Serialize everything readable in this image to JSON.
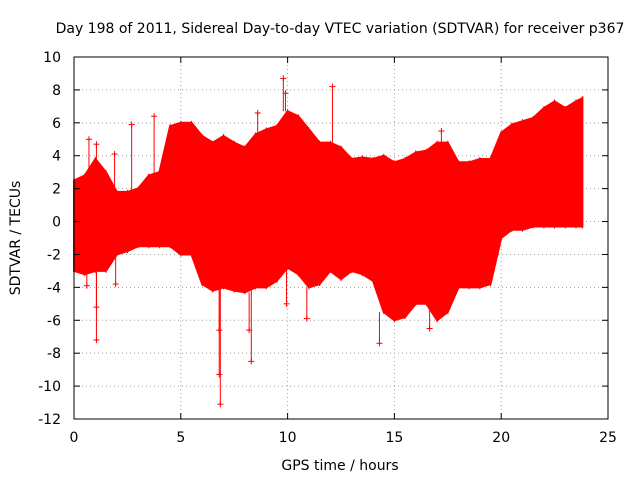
{
  "chart_data": {
    "type": "scatter",
    "title": "Day 198 of 2011, Sidereal Day-to-day VTEC variation (SDTVAR) for receiver p367",
    "xlabel": "GPS time / hours",
    "ylabel": "SDTVAR / TECUs",
    "xlim": [
      0,
      25
    ],
    "ylim": [
      -12,
      10
    ],
    "grid": true,
    "x_ticks": [
      0,
      5,
      10,
      15,
      20,
      25
    ],
    "y_ticks": [
      -12,
      -10,
      -8,
      -6,
      -4,
      -2,
      0,
      2,
      4,
      6,
      8,
      10
    ],
    "marker": "plus",
    "series": [
      {
        "name": "SDTVAR",
        "color": "#ff0000",
        "envelope": {
          "x": [
            0.0,
            0.5,
            1.0,
            1.5,
            2.0,
            2.5,
            3.0,
            3.5,
            4.0,
            4.5,
            5.0,
            5.5,
            6.0,
            6.5,
            7.0,
            7.5,
            8.0,
            8.5,
            9.0,
            9.5,
            10.0,
            10.5,
            11.0,
            11.5,
            12.0,
            12.5,
            13.0,
            13.5,
            14.0,
            14.5,
            15.0,
            15.5,
            16.0,
            16.5,
            17.0,
            17.5,
            18.0,
            18.5,
            19.0,
            19.5,
            20.0,
            20.5,
            21.0,
            21.5,
            22.0,
            22.5,
            23.0,
            23.5,
            23.8
          ],
          "upper": [
            2.5,
            2.8,
            3.8,
            3.0,
            1.8,
            1.8,
            2.0,
            2.8,
            3.0,
            5.8,
            6.0,
            6.0,
            5.2,
            4.8,
            5.2,
            4.8,
            4.5,
            5.3,
            5.6,
            5.8,
            6.7,
            6.4,
            5.6,
            4.8,
            4.8,
            4.5,
            3.8,
            3.9,
            3.8,
            4.0,
            3.6,
            3.8,
            4.2,
            4.3,
            4.8,
            4.8,
            3.6,
            3.6,
            3.8,
            3.8,
            5.4,
            5.9,
            6.1,
            6.3,
            6.9,
            7.3,
            6.9,
            7.3,
            7.5
          ],
          "lower": [
            -3.0,
            -3.2,
            -3.0,
            -3.0,
            -2.0,
            -1.8,
            -1.5,
            -1.5,
            -1.5,
            -1.5,
            -2.0,
            -2.0,
            -3.8,
            -4.2,
            -4.0,
            -4.2,
            -4.3,
            -4.0,
            -4.0,
            -3.6,
            -2.8,
            -3.2,
            -4.0,
            -3.8,
            -3.0,
            -3.5,
            -3.0,
            -3.2,
            -3.6,
            -5.5,
            -6.0,
            -5.8,
            -5.0,
            -5.0,
            -6.0,
            -5.5,
            -4.0,
            -4.0,
            -4.0,
            -3.8,
            -1.0,
            -0.5,
            -0.5,
            -0.3,
            -0.3,
            -0.3,
            -0.3,
            -0.3,
            -0.3
          ]
        },
        "outliers": [
          {
            "x": 0.7,
            "y": 5.0
          },
          {
            "x": 1.05,
            "y": 4.7
          },
          {
            "x": 1.05,
            "y": -5.2
          },
          {
            "x": 1.05,
            "y": -7.2
          },
          {
            "x": 0.6,
            "y": -3.9
          },
          {
            "x": 1.9,
            "y": 4.1
          },
          {
            "x": 1.95,
            "y": -3.8
          },
          {
            "x": 2.7,
            "y": 5.9
          },
          {
            "x": 3.75,
            "y": 6.4
          },
          {
            "x": 6.8,
            "y": -6.6
          },
          {
            "x": 6.8,
            "y": -9.3
          },
          {
            "x": 6.85,
            "y": -11.1
          },
          {
            "x": 8.2,
            "y": -6.6
          },
          {
            "x": 8.3,
            "y": -8.5
          },
          {
            "x": 8.6,
            "y": 6.6
          },
          {
            "x": 9.8,
            "y": 8.7
          },
          {
            "x": 9.9,
            "y": 7.8
          },
          {
            "x": 9.95,
            "y": -5.0
          },
          {
            "x": 10.9,
            "y": -5.9
          },
          {
            "x": 12.1,
            "y": 8.2
          },
          {
            "x": 11.6,
            "y": 3.2
          },
          {
            "x": 14.3,
            "y": -7.4
          },
          {
            "x": 16.65,
            "y": -6.5
          },
          {
            "x": 17.1,
            "y": -5.5
          },
          {
            "x": 17.2,
            "y": 5.5
          },
          {
            "x": 22.8,
            "y": 6.4
          }
        ]
      }
    ]
  }
}
